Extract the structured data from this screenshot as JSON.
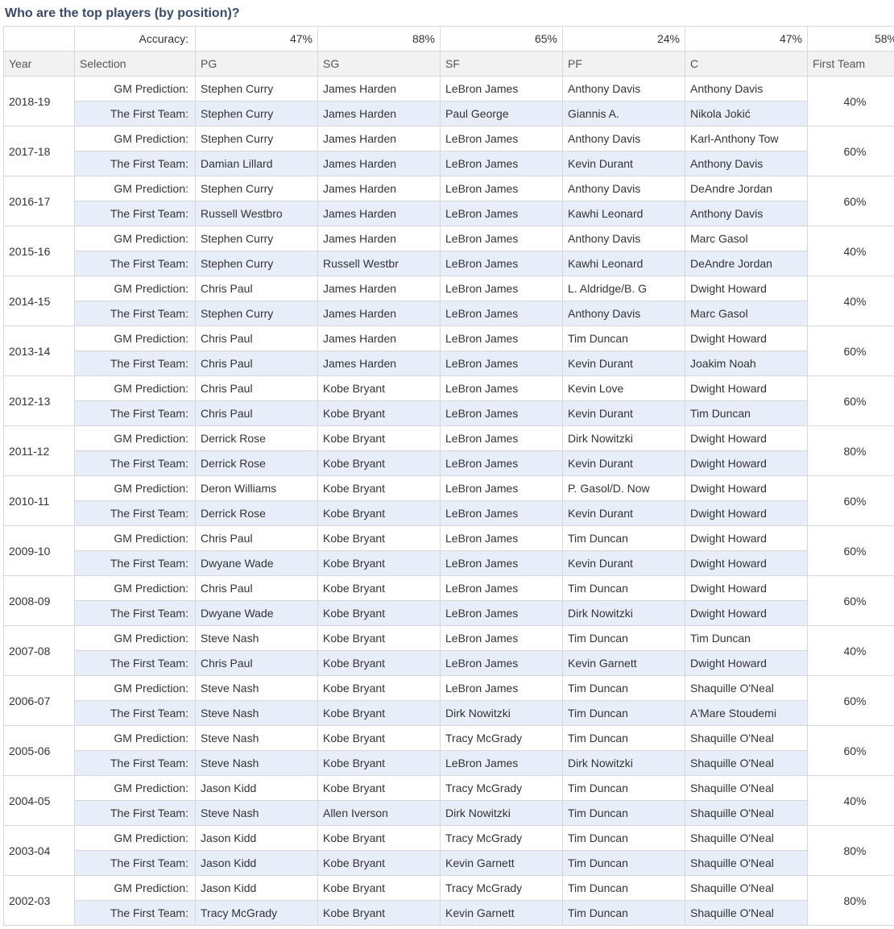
{
  "title": "Who are the top players (by position)?",
  "accuracy_label": "Accuracy:",
  "headers": {
    "year": "Year",
    "selection": "Selection",
    "pg": "PG",
    "sg": "SG",
    "sf": "SF",
    "pf": "PF",
    "c": "C",
    "first_team": "First Team"
  },
  "accuracy": {
    "pg": "47%",
    "sg": "88%",
    "sf": "65%",
    "pf": "24%",
    "c": "47%",
    "first_team": "58%"
  },
  "row_labels": {
    "gm": "GM Prediction:",
    "ft": "The First Team:"
  },
  "years": [
    {
      "year": "2018-19",
      "pct": "40%",
      "gm": {
        "pg": "Stephen Curry",
        "sg": "James Harden",
        "sf": "LeBron James",
        "pf": "Anthony Davis",
        "c": "Anthony Davis"
      },
      "ft": {
        "pg": "Stephen Curry",
        "sg": "James Harden",
        "sf": "Paul George",
        "pf": "Giannis A.",
        "c": "Nikola Jokić"
      }
    },
    {
      "year": "2017-18",
      "pct": "60%",
      "gm": {
        "pg": "Stephen Curry",
        "sg": "James Harden",
        "sf": "LeBron James",
        "pf": "Anthony Davis",
        "c": "Karl-Anthony Tow"
      },
      "ft": {
        "pg": "Damian Lillard",
        "sg": "James Harden",
        "sf": "LeBron James",
        "pf": "Kevin Durant",
        "c": "Anthony Davis"
      }
    },
    {
      "year": "2016-17",
      "pct": "60%",
      "gm": {
        "pg": "Stephen Curry",
        "sg": "James Harden",
        "sf": "LeBron James",
        "pf": "Anthony Davis",
        "c": "DeAndre Jordan"
      },
      "ft": {
        "pg": "Russell Westbro",
        "sg": "James Harden",
        "sf": "LeBron James",
        "pf": "Kawhi Leonard",
        "c": "Anthony Davis"
      }
    },
    {
      "year": "2015-16",
      "pct": "40%",
      "gm": {
        "pg": "Stephen Curry",
        "sg": "James Harden",
        "sf": "LeBron James",
        "pf": "Anthony Davis",
        "c": "Marc Gasol"
      },
      "ft": {
        "pg": "Stephen Curry",
        "sg": "Russell Westbr",
        "sf": "LeBron James",
        "pf": "Kawhi Leonard",
        "c": "DeAndre Jordan"
      }
    },
    {
      "year": "2014-15",
      "pct": "40%",
      "gm": {
        "pg": "Chris Paul",
        "sg": "James Harden",
        "sf": "LeBron James",
        "pf": "L. Aldridge/B. G",
        "c": "Dwight Howard"
      },
      "ft": {
        "pg": "Stephen Curry",
        "sg": "James Harden",
        "sf": "LeBron James",
        "pf": "Anthony Davis",
        "c": "Marc Gasol"
      }
    },
    {
      "year": "2013-14",
      "pct": "60%",
      "gm": {
        "pg": "Chris Paul",
        "sg": "James Harden",
        "sf": "LeBron James",
        "pf": "Tim Duncan",
        "c": "Dwight Howard"
      },
      "ft": {
        "pg": "Chris Paul",
        "sg": "James Harden",
        "sf": "LeBron James",
        "pf": "Kevin Durant",
        "c": "Joakim Noah"
      }
    },
    {
      "year": "2012-13",
      "pct": "60%",
      "gm": {
        "pg": "Chris Paul",
        "sg": "Kobe Bryant",
        "sf": "LeBron James",
        "pf": "Kevin Love",
        "c": "Dwight Howard"
      },
      "ft": {
        "pg": "Chris Paul",
        "sg": "Kobe Bryant",
        "sf": "LeBron James",
        "pf": "Kevin Durant",
        "c": "Tim Duncan"
      }
    },
    {
      "year": "2011-12",
      "pct": "80%",
      "gm": {
        "pg": "Derrick Rose",
        "sg": "Kobe Bryant",
        "sf": "LeBron James",
        "pf": "Dirk Nowitzki",
        "c": "Dwight Howard"
      },
      "ft": {
        "pg": "Derrick Rose",
        "sg": "Kobe Bryant",
        "sf": "LeBron James",
        "pf": "Kevin Durant",
        "c": "Dwight Howard"
      }
    },
    {
      "year": "2010-11",
      "pct": "60%",
      "gm": {
        "pg": "Deron Williams",
        "sg": "Kobe Bryant",
        "sf": "LeBron James",
        "pf": "P. Gasol/D. Now",
        "c": "Dwight Howard"
      },
      "ft": {
        "pg": "Derrick Rose",
        "sg": "Kobe Bryant",
        "sf": "LeBron James",
        "pf": "Kevin Durant",
        "c": "Dwight Howard"
      }
    },
    {
      "year": "2009-10",
      "pct": "60%",
      "gm": {
        "pg": "Chris Paul",
        "sg": "Kobe Bryant",
        "sf": "LeBron James",
        "pf": "Tim Duncan",
        "c": "Dwight Howard"
      },
      "ft": {
        "pg": "Dwyane Wade",
        "sg": "Kobe Bryant",
        "sf": "LeBron James",
        "pf": "Kevin Durant",
        "c": "Dwight Howard"
      }
    },
    {
      "year": "2008-09",
      "pct": "60%",
      "gm": {
        "pg": "Chris Paul",
        "sg": "Kobe Bryant",
        "sf": "LeBron James",
        "pf": "Tim Duncan",
        "c": "Dwight Howard"
      },
      "ft": {
        "pg": "Dwyane Wade",
        "sg": "Kobe Bryant",
        "sf": "LeBron James",
        "pf": "Dirk Nowitzki",
        "c": "Dwight Howard"
      }
    },
    {
      "year": "2007-08",
      "pct": "40%",
      "gm": {
        "pg": "Steve Nash",
        "sg": "Kobe Bryant",
        "sf": "LeBron James",
        "pf": "Tim Duncan",
        "c": "Tim Duncan"
      },
      "ft": {
        "pg": "Chris Paul",
        "sg": "Kobe Bryant",
        "sf": "LeBron James",
        "pf": "Kevin Garnett",
        "c": "Dwight Howard"
      }
    },
    {
      "year": "2006-07",
      "pct": "60%",
      "gm": {
        "pg": "Steve Nash",
        "sg": "Kobe Bryant",
        "sf": "LeBron James",
        "pf": "Tim Duncan",
        "c": "Shaquille O'Neal"
      },
      "ft": {
        "pg": "Steve Nash",
        "sg": "Kobe Bryant",
        "sf": "Dirk Nowitzki",
        "pf": "Tim Duncan",
        "c": "A'Mare Stoudemi"
      }
    },
    {
      "year": "2005-06",
      "pct": "60%",
      "gm": {
        "pg": "Steve Nash",
        "sg": "Kobe Bryant",
        "sf": "Tracy McGrady",
        "pf": "Tim Duncan",
        "c": "Shaquille O'Neal"
      },
      "ft": {
        "pg": "Steve Nash",
        "sg": "Kobe Bryant",
        "sf": "LeBron James",
        "pf": "Dirk Nowitzki",
        "c": "Shaquille O'Neal"
      }
    },
    {
      "year": "2004-05",
      "pct": "40%",
      "gm": {
        "pg": "Jason Kidd",
        "sg": "Kobe Bryant",
        "sf": "Tracy McGrady",
        "pf": "Tim Duncan",
        "c": "Shaquille O'Neal"
      },
      "ft": {
        "pg": "Steve Nash",
        "sg": "Allen Iverson",
        "sf": "Dirk Nowitzki",
        "pf": "Tim Duncan",
        "c": "Shaquille O'Neal"
      }
    },
    {
      "year": "2003-04",
      "pct": "80%",
      "gm": {
        "pg": "Jason Kidd",
        "sg": "Kobe Bryant",
        "sf": "Tracy McGrady",
        "pf": "Tim Duncan",
        "c": "Shaquille O'Neal"
      },
      "ft": {
        "pg": "Jason Kidd",
        "sg": "Kobe Bryant",
        "sf": "Kevin Garnett",
        "pf": "Tim Duncan",
        "c": "Shaquille O'Neal"
      }
    },
    {
      "year": "2002-03",
      "pct": "80%",
      "gm": {
        "pg": "Jason Kidd",
        "sg": "Kobe Bryant",
        "sf": "Tracy McGrady",
        "pf": "Tim Duncan",
        "c": "Shaquille O'Neal"
      },
      "ft": {
        "pg": "Tracy McGrady",
        "sg": "Kobe Bryant",
        "sf": "Kevin Garnett",
        "pf": "Tim Duncan",
        "c": "Shaquille O'Neal"
      }
    }
  ],
  "colors": {
    "header_bg": "#f2f2f2",
    "ft_row_bg": "#e7edf9",
    "border": "#d8d8d8",
    "title_color": "#3a4a6b"
  }
}
